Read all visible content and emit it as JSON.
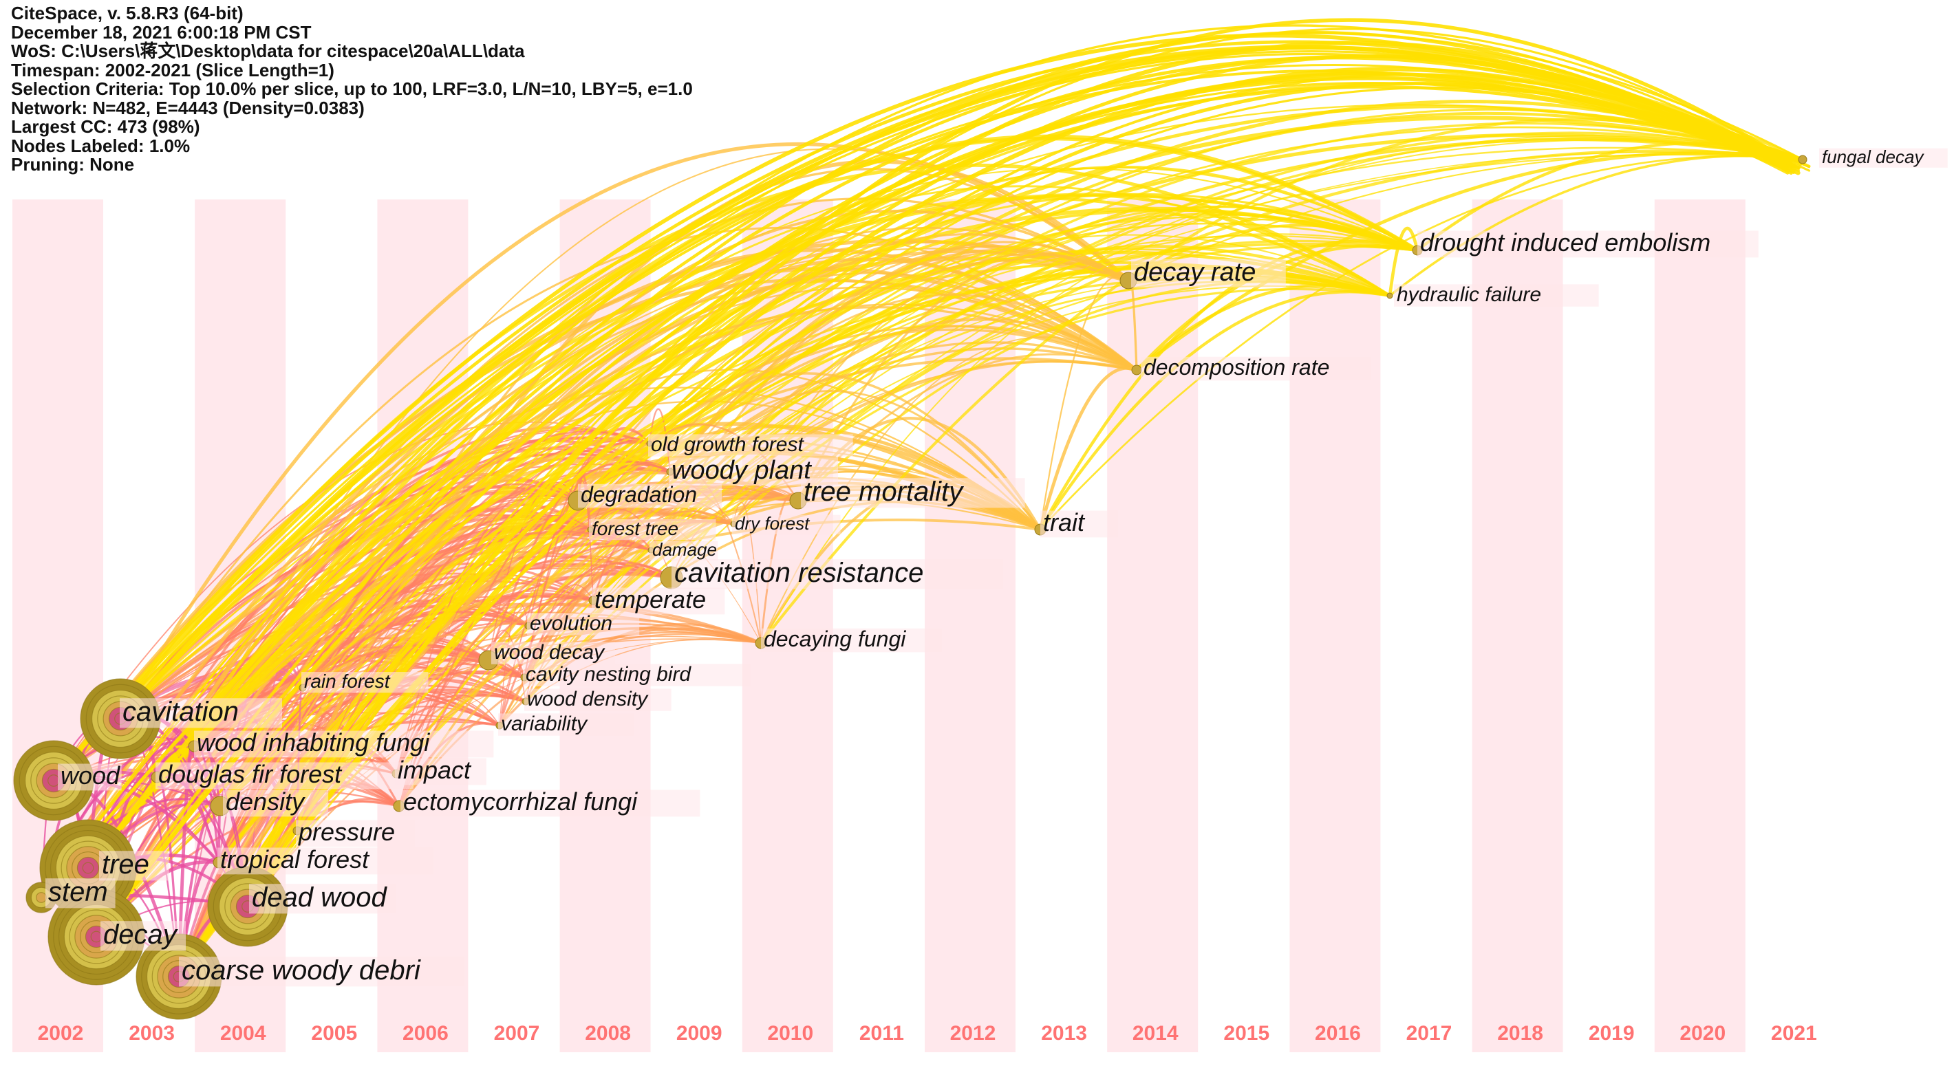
{
  "header": {
    "lines": [
      "CiteSpace, v. 5.8.R3 (64-bit)",
      "December 18, 2021 6:00:18 PM CST",
      "WoS: C:\\Users\\蒋文\\Desktop\\data for citespace\\20a\\ALL\\data",
      "Timespan: 2002-2021 (Slice Length=1)",
      "Selection Criteria: Top 10.0% per slice, up to 100, LRF=3.0, L/N=10, LBY=5, e=1.0",
      "Network: N=482, E=4443 (Density=0.0383)",
      "Largest CC: 473 (98%)",
      "Nodes Labeled: 1.0%",
      "Pruning: None"
    ]
  },
  "timeline": {
    "years": [
      "2002",
      "2003",
      "2004",
      "2005",
      "2006",
      "2007",
      "2008",
      "2009",
      "2010",
      "2011",
      "2012",
      "2013",
      "2014",
      "2015",
      "2016",
      "2017",
      "2018",
      "2019",
      "2020",
      "2021"
    ],
    "stripe_color": "#ffe8ec",
    "year_label_color": "#ff7373"
  },
  "nodes": [
    {
      "label": "cavitation",
      "year": 2003,
      "weight": 6
    },
    {
      "label": "wood",
      "year": 2002,
      "weight": 7
    },
    {
      "label": "tree",
      "year": 2003,
      "weight": 10
    },
    {
      "label": "stem",
      "year": 2002,
      "weight": 4
    },
    {
      "label": "decay",
      "year": 2002,
      "weight": 8
    },
    {
      "label": "coarse woody debri",
      "year": 2003,
      "weight": 8
    },
    {
      "label": "dead wood",
      "year": 2004,
      "weight": 5
    },
    {
      "label": "wood inhabiting fungi",
      "year": 2003,
      "weight": 2
    },
    {
      "label": "douglas fir forest",
      "year": 2003,
      "weight": 2
    },
    {
      "label": "impact",
      "year": 2006,
      "weight": 1
    },
    {
      "label": "density",
      "year": 2004,
      "weight": 2
    },
    {
      "label": "ectomycorrhizal fungi",
      "year": 2006,
      "weight": 2
    },
    {
      "label": "pressure",
      "year": 2005,
      "weight": 1
    },
    {
      "label": "tropical forest",
      "year": 2004,
      "weight": 1
    },
    {
      "label": "rain forest",
      "year": 2005,
      "weight": 1
    },
    {
      "label": "wood decay",
      "year": 2007,
      "weight": 2
    },
    {
      "label": "cavity nesting bird",
      "year": 2007,
      "weight": 1
    },
    {
      "label": "wood density",
      "year": 2007,
      "weight": 1
    },
    {
      "label": "variability",
      "year": 2007,
      "weight": 1
    },
    {
      "label": "evolution",
      "year": 2008,
      "weight": 1
    },
    {
      "label": "temperate",
      "year": 2008,
      "weight": 1
    },
    {
      "label": "cavitation resistance",
      "year": 2009,
      "weight": 3
    },
    {
      "label": "damage",
      "year": 2009,
      "weight": 1
    },
    {
      "label": "forest tree",
      "year": 2008,
      "weight": 1
    },
    {
      "label": "dry forest",
      "year": 2010,
      "weight": 1
    },
    {
      "label": "degradation",
      "year": 2008,
      "weight": 2
    },
    {
      "label": "woody plant",
      "year": 2009,
      "weight": 1
    },
    {
      "label": "old growth forest",
      "year": 2009,
      "weight": 1
    },
    {
      "label": "tree mortality",
      "year": 2010,
      "weight": 2
    },
    {
      "label": "trait",
      "year": 2013,
      "weight": 1
    },
    {
      "label": "decaying fungi",
      "year": 2010,
      "weight": 1
    },
    {
      "label": "decay rate",
      "year": 2014,
      "weight": 2
    },
    {
      "label": "decomposition rate",
      "year": 2014,
      "weight": 1
    },
    {
      "label": "drought induced embolism",
      "year": 2017,
      "weight": 1
    },
    {
      "label": "hydraulic failure",
      "year": 2017,
      "weight": 1
    },
    {
      "label": "fungal decay",
      "year": 2021,
      "weight": 1
    }
  ]
}
